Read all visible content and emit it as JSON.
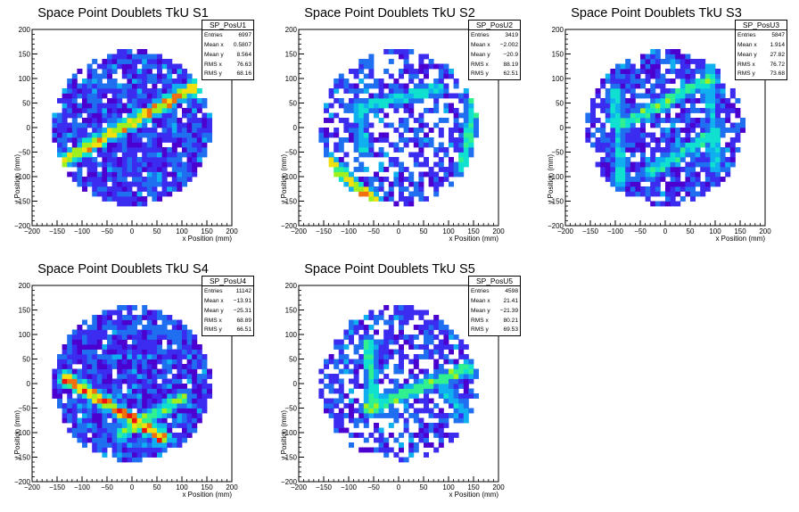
{
  "colors": {
    "palette": [
      "#4b00d0",
      "#3b2cf0",
      "#1f6ff0",
      "#10b0f0",
      "#10e0d0",
      "#30f090",
      "#a0f020",
      "#f0e010",
      "#f07010",
      "#f01010"
    ]
  },
  "chart_data": [
    {
      "type": "heatmap",
      "title": "Space Point Doublets TkU S1",
      "xlabel": "x Position (mm)",
      "ylabel": "y Position (mm)",
      "xlim": [
        -200,
        200
      ],
      "ylim": [
        -200,
        200
      ],
      "xticks": [
        "−200",
        "−150",
        "−100",
        "−50",
        "0",
        "50",
        "100",
        "150",
        "200"
      ],
      "yticks": [
        "200",
        "150",
        "100",
        "50",
        "0",
        "−50",
        "−100",
        "−150",
        "−200"
      ],
      "detector_radius": 160,
      "bin_size": 10,
      "background_density": 0.88,
      "tracks": [
        {
          "from": [
            -160,
            -80
          ],
          "to": [
            120,
            80
          ],
          "intensity": 0.8
        }
      ],
      "hotspots": [
        [
          -30,
          -10
        ],
        [
          -10,
          0
        ],
        [
          20,
          10
        ]
      ],
      "stats": {
        "name": "SP_PosU1",
        "rows": [
          [
            "Entries",
            "6997"
          ],
          [
            "Mean x",
            "0.5807"
          ],
          [
            "Mean y",
            "8.564"
          ],
          [
            "RMS x",
            "76.63"
          ],
          [
            "RMS y",
            "68.16"
          ]
        ]
      }
    },
    {
      "type": "heatmap",
      "title": "Space Point Doublets TkU S2",
      "xlabel": "x Position (mm)",
      "ylabel": "y Position (mm)",
      "xlim": [
        -200,
        200
      ],
      "ylim": [
        -200,
        200
      ],
      "xticks": [
        "−200",
        "−150",
        "−100",
        "−50",
        "0",
        "50",
        "100",
        "150",
        "200"
      ],
      "yticks": [
        "200",
        "150",
        "100",
        "50",
        "0",
        "−50",
        "−100",
        "−150",
        "−200"
      ],
      "detector_radius": 160,
      "bin_size": 10,
      "background_density": 0.55,
      "tracks": [
        {
          "from": [
            -140,
            -70
          ],
          "to": [
            -50,
            -150
          ],
          "intensity": 0.75
        },
        {
          "from": [
            -80,
            40
          ],
          "to": [
            80,
            80
          ],
          "intensity": 0.45
        },
        {
          "from": [
            -80,
            40
          ],
          "to": [
            -70,
            -40
          ],
          "intensity": 0.45
        },
        {
          "from": [
            130,
            -80
          ],
          "to": [
            150,
            50
          ],
          "intensity": 0.5
        }
      ],
      "hotspots": [
        [
          -80,
          -110
        ],
        [
          -20,
          40
        ]
      ],
      "stats": {
        "name": "SP_PosU2",
        "rows": [
          [
            "Entries",
            "3419"
          ],
          [
            "Mean x",
            "−2.002"
          ],
          [
            "Mean y",
            "−20.9"
          ],
          [
            "RMS x",
            "88.19"
          ],
          [
            "RMS y",
            "62.51"
          ]
        ]
      }
    },
    {
      "type": "heatmap",
      "title": "Space Point Doublets TkU S3",
      "xlabel": "x Position (mm)",
      "ylabel": "y Position (mm)",
      "xlim": [
        -200,
        200
      ],
      "ylim": [
        -200,
        200
      ],
      "xticks": [
        "−200",
        "−150",
        "−100",
        "−50",
        "0",
        "50",
        "100",
        "150",
        "200"
      ],
      "yticks": [
        "200",
        "150",
        "100",
        "50",
        "0",
        "−50",
        "−100",
        "−150",
        "−200"
      ],
      "detector_radius": 160,
      "bin_size": 10,
      "background_density": 0.72,
      "tracks": [
        {
          "from": [
            -80,
            10
          ],
          "to": [
            90,
            100
          ],
          "intensity": 0.55
        },
        {
          "from": [
            -30,
            -90
          ],
          "to": [
            100,
            -10
          ],
          "intensity": 0.5
        },
        {
          "from": [
            -100,
            70
          ],
          "to": [
            -90,
            -110
          ],
          "intensity": 0.45
        },
        {
          "from": [
            90,
            120
          ],
          "to": [
            100,
            -80
          ],
          "intensity": 0.4
        }
      ],
      "hotspots": [
        [
          -150,
          -70
        ],
        [
          10,
          50
        ]
      ],
      "stats": {
        "name": "SP_PosU3",
        "rows": [
          [
            "Entries",
            "5847"
          ],
          [
            "Mean x",
            "1.914"
          ],
          [
            "Mean y",
            "27.82"
          ],
          [
            "RMS x",
            "76.72"
          ],
          [
            "RMS y",
            "73.68"
          ]
        ]
      }
    },
    {
      "type": "heatmap",
      "title": "Space Point Doublets TkU S4",
      "xlabel": "x Position (mm)",
      "ylabel": "y Position (mm)",
      "xlim": [
        -200,
        200
      ],
      "ylim": [
        -200,
        200
      ],
      "xticks": [
        "−200",
        "−150",
        "−100",
        "−50",
        "0",
        "50",
        "100",
        "150",
        "200"
      ],
      "yticks": [
        "200",
        "150",
        "100",
        "50",
        "0",
        "−50",
        "−100",
        "−150",
        "−200"
      ],
      "detector_radius": 160,
      "bin_size": 10,
      "background_density": 0.93,
      "tracks": [
        {
          "from": [
            -130,
            10
          ],
          "to": [
            60,
            -110
          ],
          "intensity": 0.85
        },
        {
          "from": [
            -20,
            -100
          ],
          "to": [
            100,
            -30
          ],
          "intensity": 0.6
        }
      ],
      "hotspots": [
        [
          -60,
          -40
        ],
        [
          -10,
          -60
        ]
      ],
      "stats": {
        "name": "SP_PosU4",
        "rows": [
          [
            "Entries",
            "11142"
          ],
          [
            "Mean x",
            "−13.91"
          ],
          [
            "Mean y",
            "−25.31"
          ],
          [
            "RMS x",
            "68.89"
          ],
          [
            "RMS y",
            "66.51"
          ]
        ]
      }
    },
    {
      "type": "heatmap",
      "title": "Space Point Doublets TkU S5",
      "xlabel": "x Position (mm)",
      "ylabel": "y Position (mm)",
      "xlim": [
        -200,
        200
      ],
      "ylim": [
        -200,
        200
      ],
      "xticks": [
        "−200",
        "−150",
        "−100",
        "−50",
        "0",
        "50",
        "100",
        "150",
        "200"
      ],
      "yticks": [
        "200",
        "150",
        "100",
        "50",
        "0",
        "−50",
        "−100",
        "−150",
        "−200"
      ],
      "detector_radius": 160,
      "bin_size": 10,
      "background_density": 0.6,
      "tracks": [
        {
          "from": [
            -60,
            -50
          ],
          "to": [
            160,
            40
          ],
          "intensity": 0.6
        },
        {
          "from": [
            -60,
            80
          ],
          "to": [
            -50,
            -50
          ],
          "intensity": 0.55
        },
        {
          "from": [
            90,
            -10
          ],
          "to": [
            150,
            -80
          ],
          "intensity": 0.4
        }
      ],
      "hotspots": [
        [
          30,
          -10
        ],
        [
          140,
          0
        ]
      ],
      "stats": {
        "name": "SP_PosU5",
        "rows": [
          [
            "Entries",
            "4598"
          ],
          [
            "Mean x",
            "21.41"
          ],
          [
            "Mean y",
            "−21.39"
          ],
          [
            "RMS x",
            "80.21"
          ],
          [
            "RMS y",
            "69.53"
          ]
        ]
      }
    }
  ]
}
